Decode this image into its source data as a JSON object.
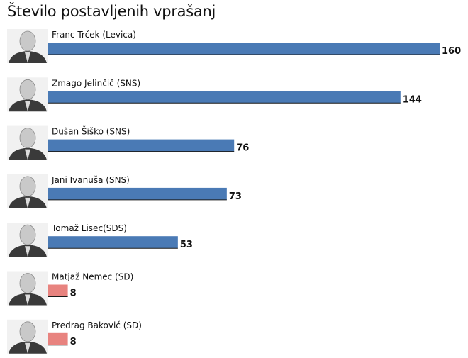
{
  "chart_data": {
    "type": "bar",
    "orientation": "horizontal",
    "title": "Število postavljenih vprašanj",
    "categories": [
      "Franc Trček (Levica)",
      "Zmago Jelinčič (SNS)",
      "Dušan Šiško (SNS)",
      "Jani Ivanuša (SNS)",
      "Tomaž Lisec(SDS)",
      "Matjaž Nemec (SD)",
      "Predrag Baković (SD)"
    ],
    "values": [
      160,
      144,
      76,
      73,
      53,
      8,
      8
    ],
    "colors": [
      "#4a7ab5",
      "#4a7ab5",
      "#4a7ab5",
      "#4a7ab5",
      "#4a7ab5",
      "#e8837f",
      "#e8837f"
    ],
    "xlim": [
      0,
      160
    ],
    "grid": false,
    "legend": "none",
    "xlabel": "",
    "ylabel": ""
  },
  "icons": [
    "person-photo-icon"
  ]
}
